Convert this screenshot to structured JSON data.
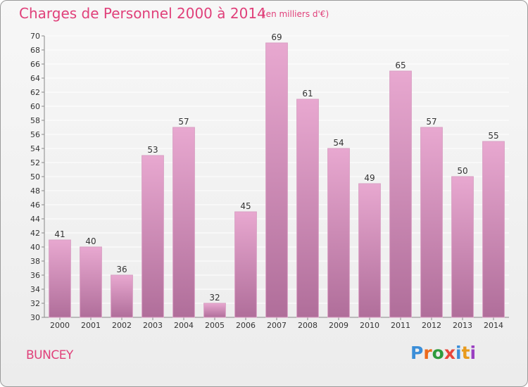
{
  "header": {
    "title": "Charges de Personnel 2000 à 2014",
    "subtitle": "(en milliers d'€)"
  },
  "footer": {
    "commune": "BUNCEY",
    "brand": "Proxiti",
    "brand_colors": [
      "#3b8ed8",
      "#ec6a1c",
      "#2e9b3e",
      "#e8463b",
      "#3b8ed8",
      "#e89a1c",
      "#9a3fc1"
    ]
  },
  "colors": {
    "accent": "#e0407a",
    "bar_top": "#e8a8d0",
    "bar_bottom": "#b06e9a",
    "grid": "#ffffff"
  },
  "chart_data": {
    "type": "bar",
    "title": "Charges de Personnel 2000 à 2014",
    "subtitle": "(en milliers d'€)",
    "xlabel": "",
    "ylabel": "",
    "categories": [
      "2000",
      "2001",
      "2002",
      "2003",
      "2004",
      "2005",
      "2006",
      "2007",
      "2008",
      "2009",
      "2010",
      "2011",
      "2012",
      "2013",
      "2014"
    ],
    "values": [
      41,
      40,
      36,
      53,
      57,
      32,
      45,
      69,
      61,
      54,
      49,
      65,
      57,
      50,
      55
    ],
    "ylim": [
      30,
      70
    ],
    "ytick_step": 2,
    "grid": true,
    "legend": "none",
    "data_labels": true
  }
}
